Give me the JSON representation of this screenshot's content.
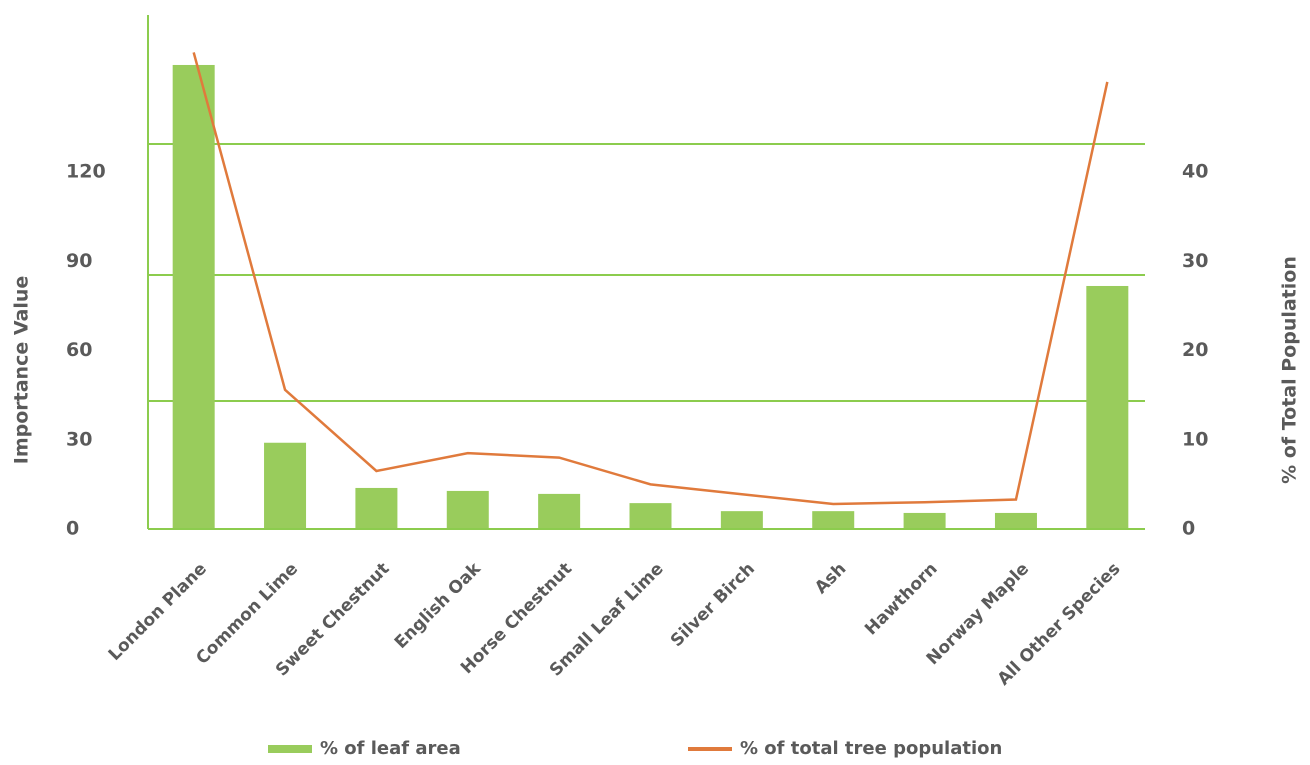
{
  "chart_data": {
    "type": "bar_line",
    "categories": [
      "London Plane",
      "Common Lime",
      "Sweet Chestnut",
      "English Oak",
      "Horse Chestnut",
      "Small Leaf Lime",
      "Silver Birch",
      "Ash",
      "Hawthorn",
      "Norway Maple",
      "All Other Species"
    ],
    "series": [
      {
        "name": "% of leaf area",
        "type": "bar",
        "color": "#99cc5c",
        "values": [
          156,
          29,
          13.8,
          12.8,
          11.8,
          8.7,
          6,
          6,
          5.4,
          5.4,
          81.7
        ]
      },
      {
        "name": "% of total tree population",
        "type": "line",
        "axis": "y2",
        "color": "#e07a3c",
        "values": [
          53.4,
          15.6,
          6.5,
          8.5,
          8.0,
          5.0,
          3.9,
          2.8,
          3.0,
          3.3,
          50.1
        ]
      }
    ],
    "ylabel": "Importance Value",
    "y2label": "% of Total Population",
    "ylim": [
      0,
      172.8
    ],
    "yticks": [
      0,
      30,
      60,
      90,
      120
    ],
    "y2lim": [
      0,
      57.6
    ],
    "y2ticks": [
      0,
      10,
      20,
      30,
      40
    ],
    "legend": "bottom"
  }
}
